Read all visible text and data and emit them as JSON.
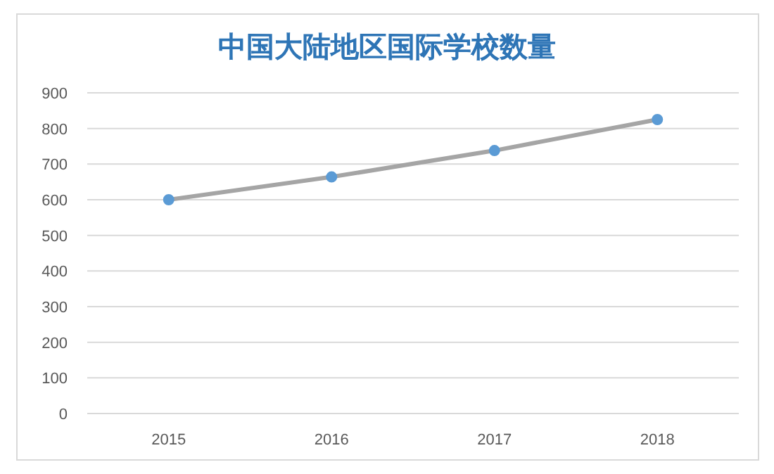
{
  "chart_data": {
    "type": "line",
    "title": "中国大陆地区国际学校数量",
    "categories": [
      "2015",
      "2016",
      "2017",
      "2018"
    ],
    "series": [
      {
        "color": "#a5a5a5",
        "values": [
          600,
          664,
          738,
          825
        ]
      }
    ],
    "ylim": [
      0,
      900
    ],
    "yticks": [
      0,
      100,
      200,
      300,
      400,
      500,
      600,
      700,
      800,
      900
    ],
    "grid": "y",
    "marker": "circle",
    "line_style": "solid"
  }
}
